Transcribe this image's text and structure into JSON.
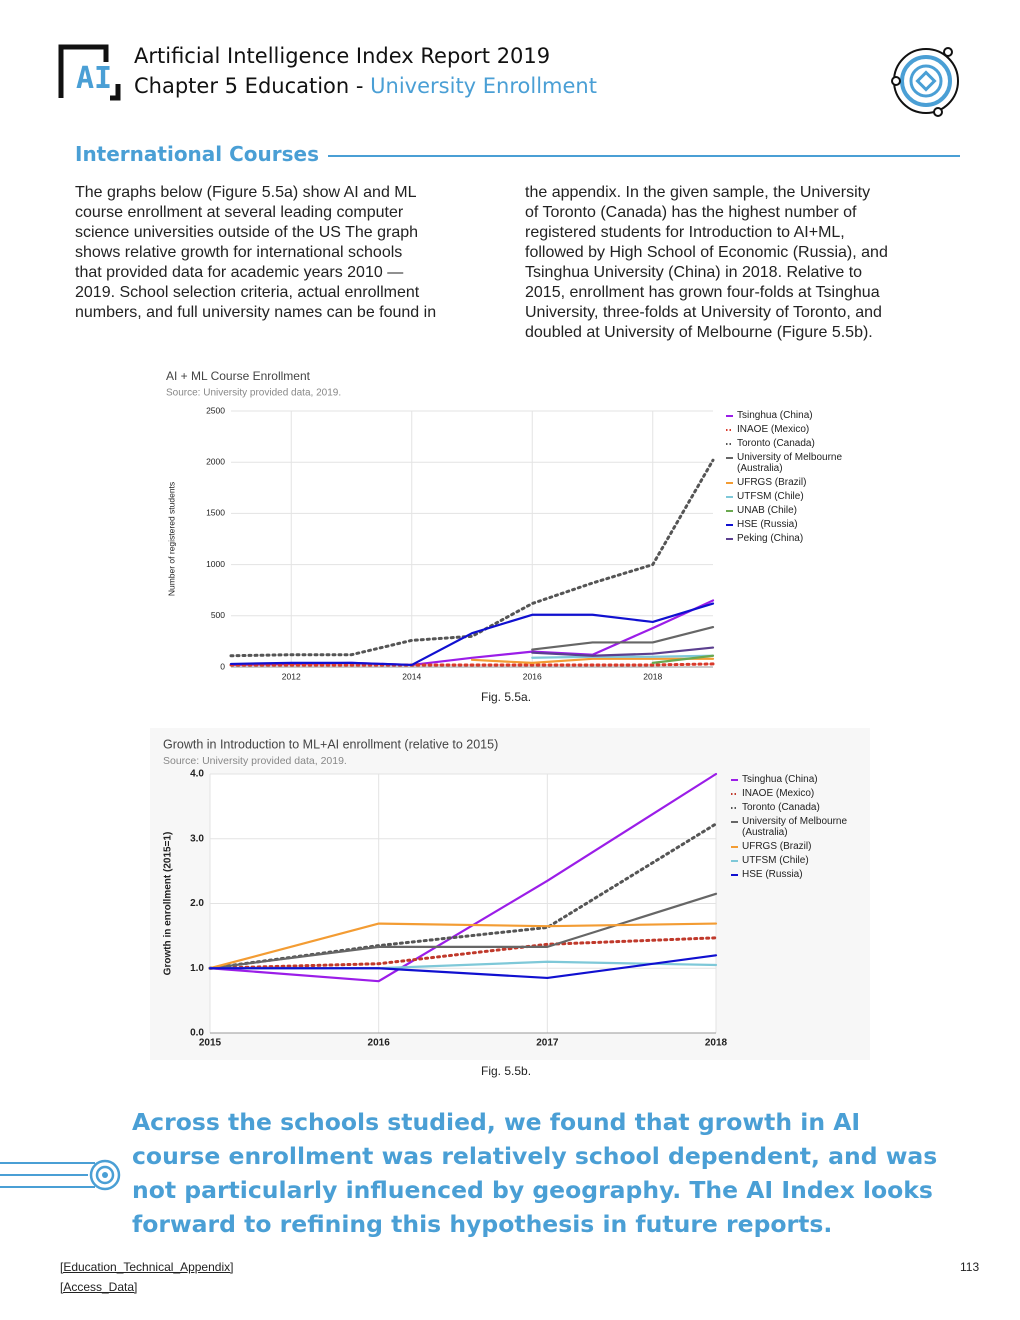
{
  "header": {
    "logo": "AI",
    "title": "Artificial Intelligence Index Report 2019",
    "chapter": "Chapter 5 Education -",
    "topic": "University Enrollment"
  },
  "section": {
    "heading": "International Courses",
    "column1": [
      "The graphs below (Figure 5.5a) show AI and ML",
      "course enrollment at several leading computer",
      "science universities outside of the US The graph",
      "shows relative growth for international schools",
      "that provided data for academic years 2010 —",
      "2019. School selection criteria, actual enrollment",
      "numbers, and full university names can be found in"
    ],
    "column2": [
      "the appendix. In the given sample, the University",
      "of Toronto (Canada) has the highest number of",
      "registered students for Introduction to AI+ML,",
      "followed by High School of Economic (Russia), and",
      "Tsinghua University (China) in 2018. Relative to",
      "2015, enrollment has grown four-folds at Tsinghua",
      "University, three-folds at University of Toronto, and",
      "doubled at University of Melbourne (Figure 5.5b)."
    ]
  },
  "chart_data": [
    {
      "type": "line",
      "title": "AI + ML Course Enrollment",
      "subtitle": "Source: University provided data, 2019.",
      "caption": "Fig. 5.5a.",
      "y_label": "Number of registered students",
      "x": [
        2011,
        2012,
        2013,
        2014,
        2015,
        2016,
        2017,
        2018,
        2019
      ],
      "xlim": [
        2011,
        2019
      ],
      "xticks": [
        2012,
        2014,
        2016,
        2018
      ],
      "ylim": [
        0,
        2500
      ],
      "yticks": [
        0,
        500,
        1000,
        1500,
        2000,
        2500
      ],
      "grid": true,
      "series": [
        {
          "name": "Tsinghua (China)",
          "color": "#9b1de8",
          "style": "solid",
          "values": [
            20,
            30,
            40,
            20,
            90,
            150,
            120,
            380,
            650
          ]
        },
        {
          "name": "INAOE (Mexico)",
          "color": "#d93a2b",
          "style": "dotted",
          "values": [
            20,
            20,
            20,
            20,
            20,
            20,
            20,
            20,
            30
          ]
        },
        {
          "name": "Toronto (Canada)",
          "color": "#555555",
          "style": "dotted",
          "values": [
            110,
            120,
            120,
            260,
            300,
            620,
            820,
            1000,
            2020
          ]
        },
        {
          "name": "University of Melbourne (Australia)",
          "color": "#666666",
          "style": "solid",
          "values": [
            null,
            null,
            null,
            null,
            null,
            170,
            240,
            240,
            390
          ]
        },
        {
          "name": "UFRGS (Brazil)",
          "color": "#f39c33",
          "style": "solid",
          "values": [
            null,
            null,
            null,
            null,
            70,
            40,
            80,
            80,
            80
          ]
        },
        {
          "name": "UTFSM (Chile)",
          "color": "#7ec8d8",
          "style": "solid",
          "values": [
            null,
            null,
            null,
            null,
            null,
            90,
            100,
            100,
            110
          ]
        },
        {
          "name": "UNAB (Chile)",
          "color": "#6aa84f",
          "style": "solid",
          "values": [
            null,
            null,
            null,
            null,
            null,
            null,
            null,
            40,
            110
          ]
        },
        {
          "name": "HSE (Russia)",
          "color": "#1010d0",
          "style": "solid",
          "values": [
            30,
            40,
            40,
            20,
            330,
            510,
            510,
            440,
            620
          ]
        },
        {
          "name": "Peking (China)",
          "color": "#5b3f8f",
          "style": "solid",
          "values": [
            null,
            null,
            null,
            null,
            null,
            140,
            110,
            130,
            190
          ]
        }
      ]
    },
    {
      "type": "line",
      "title": "Growth in Introduction to ML+AI enrollment (relative to 2015)",
      "subtitle": "Source: University provided data, 2019.",
      "caption": "Fig. 5.5b.",
      "y_label": "Growth in enrollment (2015=1)",
      "x": [
        2015,
        2016,
        2017,
        2018
      ],
      "xlim": [
        2015,
        2018
      ],
      "xticks": [
        2015,
        2016,
        2017,
        2018
      ],
      "ylim": [
        0,
        4
      ],
      "yticks": [
        {
          "value": 0,
          "label": "0.0"
        },
        {
          "value": 1,
          "label": "1.0"
        },
        {
          "value": 2,
          "label": "2.0"
        },
        {
          "value": 3,
          "label": "3.0"
        },
        {
          "value": 4,
          "label": "4.0"
        }
      ],
      "grid": true,
      "series": [
        {
          "name": "Tsinghua (China)",
          "color": "#9b1de8",
          "style": "solid",
          "values": [
            1,
            0.8,
            2.35,
            4.0
          ]
        },
        {
          "name": "INAOE (Mexico)",
          "color": "#c0392b",
          "style": "dotted",
          "values": [
            1,
            1.07,
            1.37,
            1.47
          ]
        },
        {
          "name": "Toronto (Canada)",
          "color": "#555555",
          "style": "dotted",
          "values": [
            1,
            1.35,
            1.63,
            3.23
          ]
        },
        {
          "name": "University of Melbourne (Australia)",
          "color": "#666666",
          "style": "solid",
          "values": [
            1,
            1.33,
            1.33,
            2.15
          ]
        },
        {
          "name": "UFRGS (Brazil)",
          "color": "#f39c33",
          "style": "solid",
          "values": [
            1,
            1.69,
            1.65,
            1.69
          ]
        },
        {
          "name": "UTFSM (Chile)",
          "color": "#7ec8d8",
          "style": "solid",
          "values": [
            1,
            1.0,
            1.1,
            1.05
          ]
        },
        {
          "name": "HSE (Russia)",
          "color": "#1010d0",
          "style": "solid",
          "values": [
            1,
            1.0,
            0.85,
            1.2
          ]
        }
      ]
    }
  ],
  "quote": [
    "Across the schools studied, we found that growth in AI",
    "course enrollment was relatively school dependent, and was",
    "not particularly influenced by geography. The AI Index looks",
    "forward to refining this hypothesis in future reports."
  ],
  "footer": {
    "links": [
      "[Education_Technical_Appendix]",
      "[Access_Data]"
    ],
    "page": "113"
  }
}
